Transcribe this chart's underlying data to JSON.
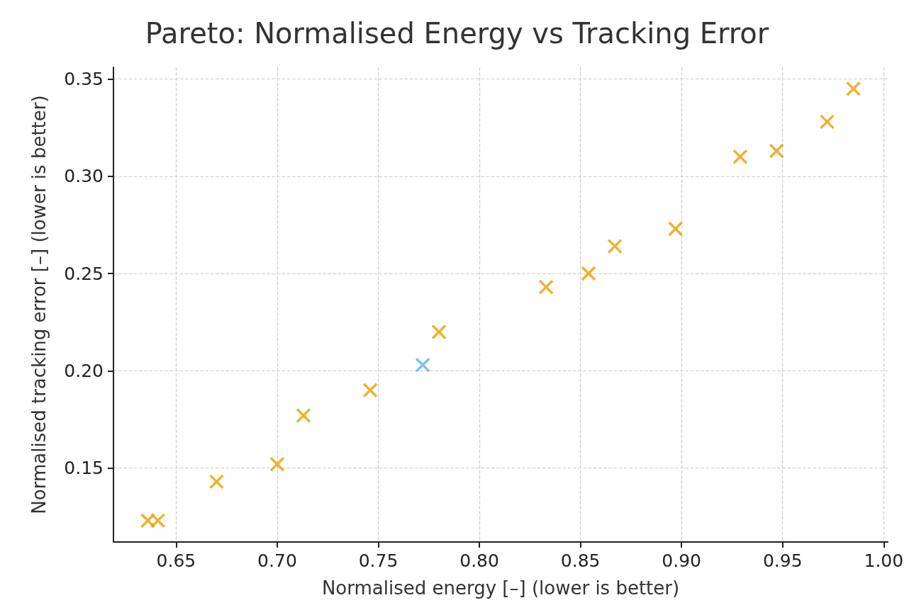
{
  "chart_data": {
    "type": "scatter",
    "title": "Pareto: Normalised Energy vs Tracking Error",
    "xlabel": "Normalised energy [–] (lower is better)",
    "ylabel": "Normalised tracking error [–] (lower is better)",
    "series": [
      {
        "color": "#e69f00",
        "x": [
          0.636,
          0.641,
          0.67,
          0.7,
          0.713,
          0.746,
          0.78,
          0.833,
          0.854,
          0.867,
          0.897,
          0.929,
          0.947,
          0.972,
          0.985
        ],
        "values": [
          0.123,
          0.123,
          0.143,
          0.152,
          0.177,
          0.19,
          0.22,
          0.243,
          0.25,
          0.264,
          0.273,
          0.31,
          0.313,
          0.328,
          0.345
        ]
      },
      {
        "color": "#56b4e9",
        "x": [
          0.772
        ],
        "values": [
          0.203
        ]
      }
    ],
    "xlim": [
      0.619,
      1.002
    ],
    "ylim": [
      0.112,
      0.356
    ],
    "xticks": [
      {
        "value": 0.65,
        "label": "0.65"
      },
      {
        "value": 0.7,
        "label": "0.70"
      },
      {
        "value": 0.75,
        "label": "0.75"
      },
      {
        "value": 0.8,
        "label": "0.80"
      },
      {
        "value": 0.85,
        "label": "0.85"
      },
      {
        "value": 0.9,
        "label": "0.90"
      },
      {
        "value": 0.95,
        "label": "0.95"
      },
      {
        "value": 1.0,
        "label": "1.00"
      }
    ],
    "yticks": [
      {
        "value": 0.15,
        "label": "0.15"
      },
      {
        "value": 0.2,
        "label": "0.20"
      },
      {
        "value": 0.25,
        "label": "0.25"
      },
      {
        "value": 0.3,
        "label": "0.30"
      },
      {
        "value": 0.35,
        "label": "0.35"
      }
    ],
    "grid": true,
    "marker": "cross"
  }
}
